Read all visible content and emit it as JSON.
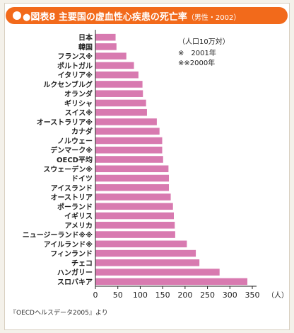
{
  "header": {
    "figure_no": "●図表8",
    "title": "主要国の虚血性心疾患の死亡率",
    "subtitle": "（男性・2002）"
  },
  "source": "『OECDヘルスデータ2005』より",
  "colors": {
    "header_bg": "#f26a1b",
    "bar": "#d87ab0"
  },
  "legend": {
    "unit": "（人口10万対）",
    "note1": "※　2001年",
    "note2": "※※2000年"
  },
  "chart_data": {
    "type": "bar",
    "orientation": "horizontal",
    "categories": [
      "日本",
      "韓国",
      "フランス※",
      "ポルトガル",
      "イタリア※",
      "ルクセンブルグ",
      "オランダ",
      "ギリシャ",
      "スイス※",
      "オーストラリア※",
      "カナダ",
      "ノルウェー",
      "デンマーク※",
      "OECD平均",
      "スウェーデン※",
      "ドイツ",
      "アイスランド",
      "オーストリア",
      "ポーランド",
      "イギリス",
      "アメリカ",
      "ニュージーランド※※",
      "アイルランド※",
      "フィンランド",
      "チェコ",
      "ハンガリー",
      "スロバキア"
    ],
    "values": [
      45,
      47,
      69,
      86,
      96,
      105,
      106,
      113,
      115,
      137,
      143,
      149,
      149,
      151,
      163,
      164,
      164,
      168,
      173,
      175,
      177,
      178,
      204,
      224,
      232,
      277,
      339
    ],
    "xlim": [
      0,
      350
    ],
    "xticks": [
      0,
      50,
      100,
      150,
      200,
      250,
      300,
      350
    ],
    "x_unit": "（人）",
    "grid": false
  }
}
